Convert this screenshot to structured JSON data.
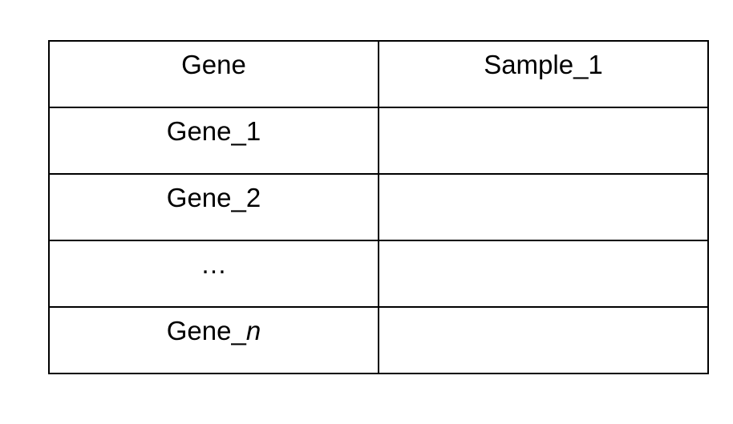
{
  "table": {
    "headers": [
      "Gene",
      "Sample_1"
    ],
    "rows": [
      {
        "gene": "Gene_1",
        "gene_suffix": "",
        "sample_1": ""
      },
      {
        "gene": "Gene_2",
        "gene_suffix": "",
        "sample_1": ""
      },
      {
        "gene": "…",
        "gene_suffix": "",
        "sample_1": ""
      },
      {
        "gene": "Gene_",
        "gene_suffix": "n",
        "sample_1": ""
      }
    ]
  }
}
